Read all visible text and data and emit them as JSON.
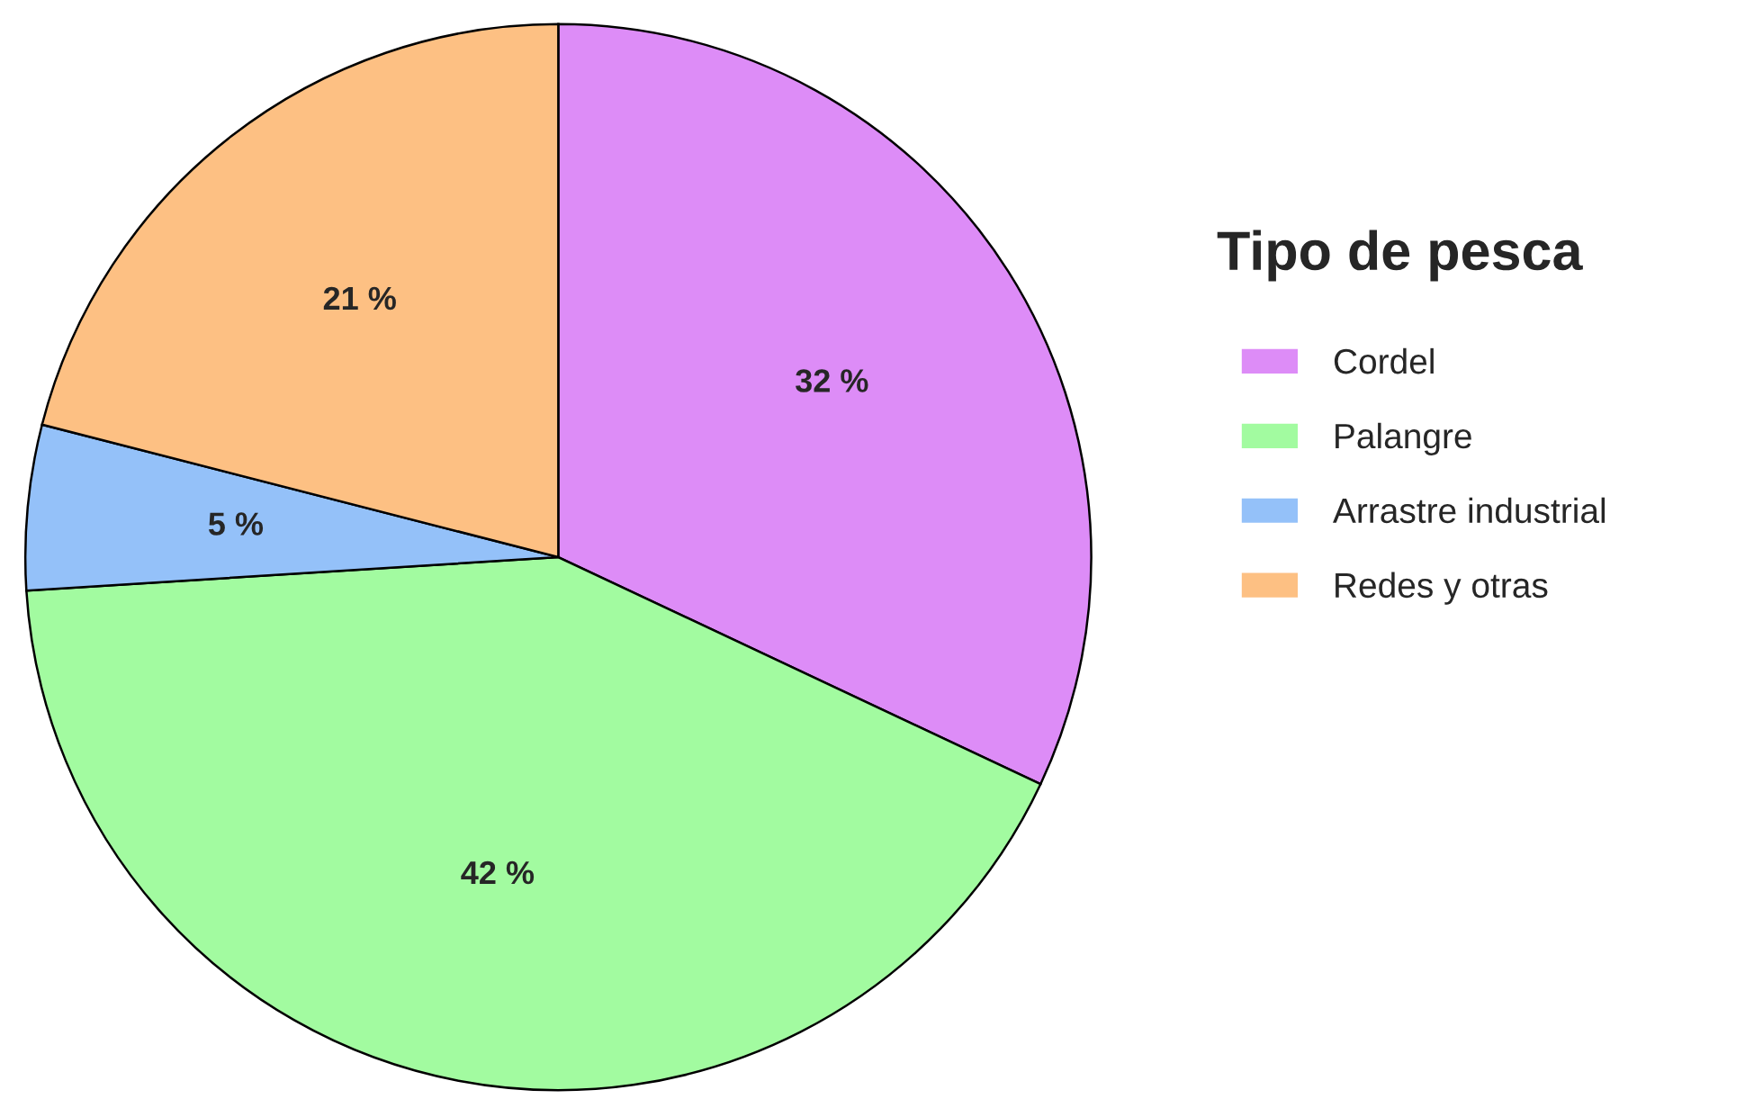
{
  "chart_data": {
    "type": "pie",
    "legend_title": "Tipo de pesca",
    "categories": [
      "Cordel",
      "Palangre",
      "Arrastre industrial",
      "Redes y otras"
    ],
    "values": [
      32,
      42,
      5,
      21
    ],
    "colors": [
      "#dd8cf7",
      "#a2fba0",
      "#94c1f9",
      "#fdc083"
    ],
    "value_labels": [
      "32 %",
      "42 %",
      "5 %",
      "21 %"
    ],
    "legend": "right"
  }
}
